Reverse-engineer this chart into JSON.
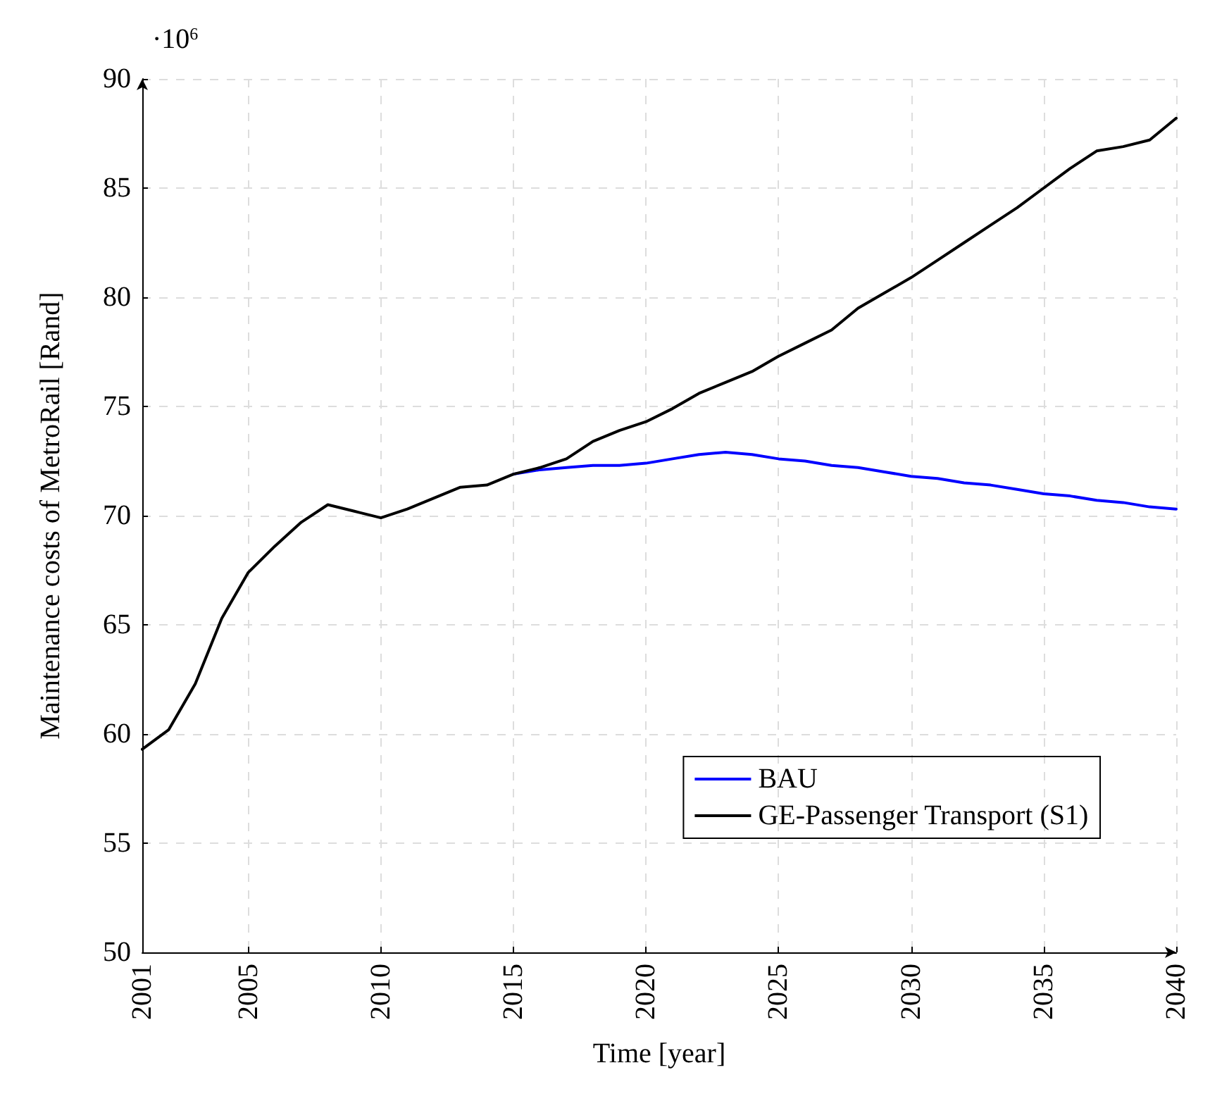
{
  "chart_data": {
    "type": "line",
    "xlabel": "Time [year]",
    "ylabel": "Maintenance costs of MetroRail [Rand]",
    "annotations": [
      "·10$^{6}$"
    ],
    "x": [
      2001,
      2002,
      2003,
      2004,
      2005,
      2006,
      2007,
      2008,
      2009,
      2010,
      2011,
      2012,
      2013,
      2014,
      2015,
      2016,
      2017,
      2018,
      2019,
      2020,
      2021,
      2022,
      2023,
      2024,
      2025,
      2026,
      2027,
      2028,
      2029,
      2030,
      2031,
      2032,
      2033,
      2034,
      2035,
      2036,
      2037,
      2038,
      2039,
      2040
    ],
    "series": [
      {
        "name": "BAU",
        "color": "#0000ff",
        "values": [
          null,
          null,
          null,
          null,
          null,
          null,
          null,
          null,
          null,
          null,
          null,
          null,
          null,
          null,
          71.9,
          72.1,
          72.2,
          72.3,
          72.3,
          72.4,
          72.6,
          72.8,
          72.9,
          72.8,
          72.6,
          72.5,
          72.3,
          72.2,
          72.0,
          71.8,
          71.7,
          71.5,
          71.4,
          71.2,
          71.0,
          70.9,
          70.7,
          70.6,
          70.4,
          70.3
        ]
      },
      {
        "name": "GE-Passenger Transport (S1)",
        "color": "#000000",
        "values": [
          59.3,
          60.2,
          62.3,
          65.3,
          67.4,
          68.6,
          69.7,
          70.5,
          70.2,
          69.9,
          70.3,
          70.8,
          71.3,
          71.4,
          71.9,
          72.2,
          72.6,
          73.4,
          73.9,
          74.3,
          74.9,
          75.6,
          76.1,
          76.6,
          77.3,
          77.9,
          78.5,
          79.5,
          80.2,
          80.9,
          81.7,
          82.5,
          83.3,
          84.1,
          85.0,
          85.9,
          86.7,
          86.9,
          87.2,
          88.2
        ]
      }
    ],
    "xlim": [
      2001,
      2040
    ],
    "xticks": [
      2001,
      2005,
      2010,
      2015,
      2020,
      2025,
      2030,
      2035,
      2040
    ],
    "ylim": [
      50,
      90
    ],
    "yticks": [
      50,
      55,
      60,
      65,
      70,
      75,
      80,
      85,
      90
    ],
    "grid": true,
    "legend": "bottom right",
    "marker": "none",
    "line_style": "solid"
  }
}
